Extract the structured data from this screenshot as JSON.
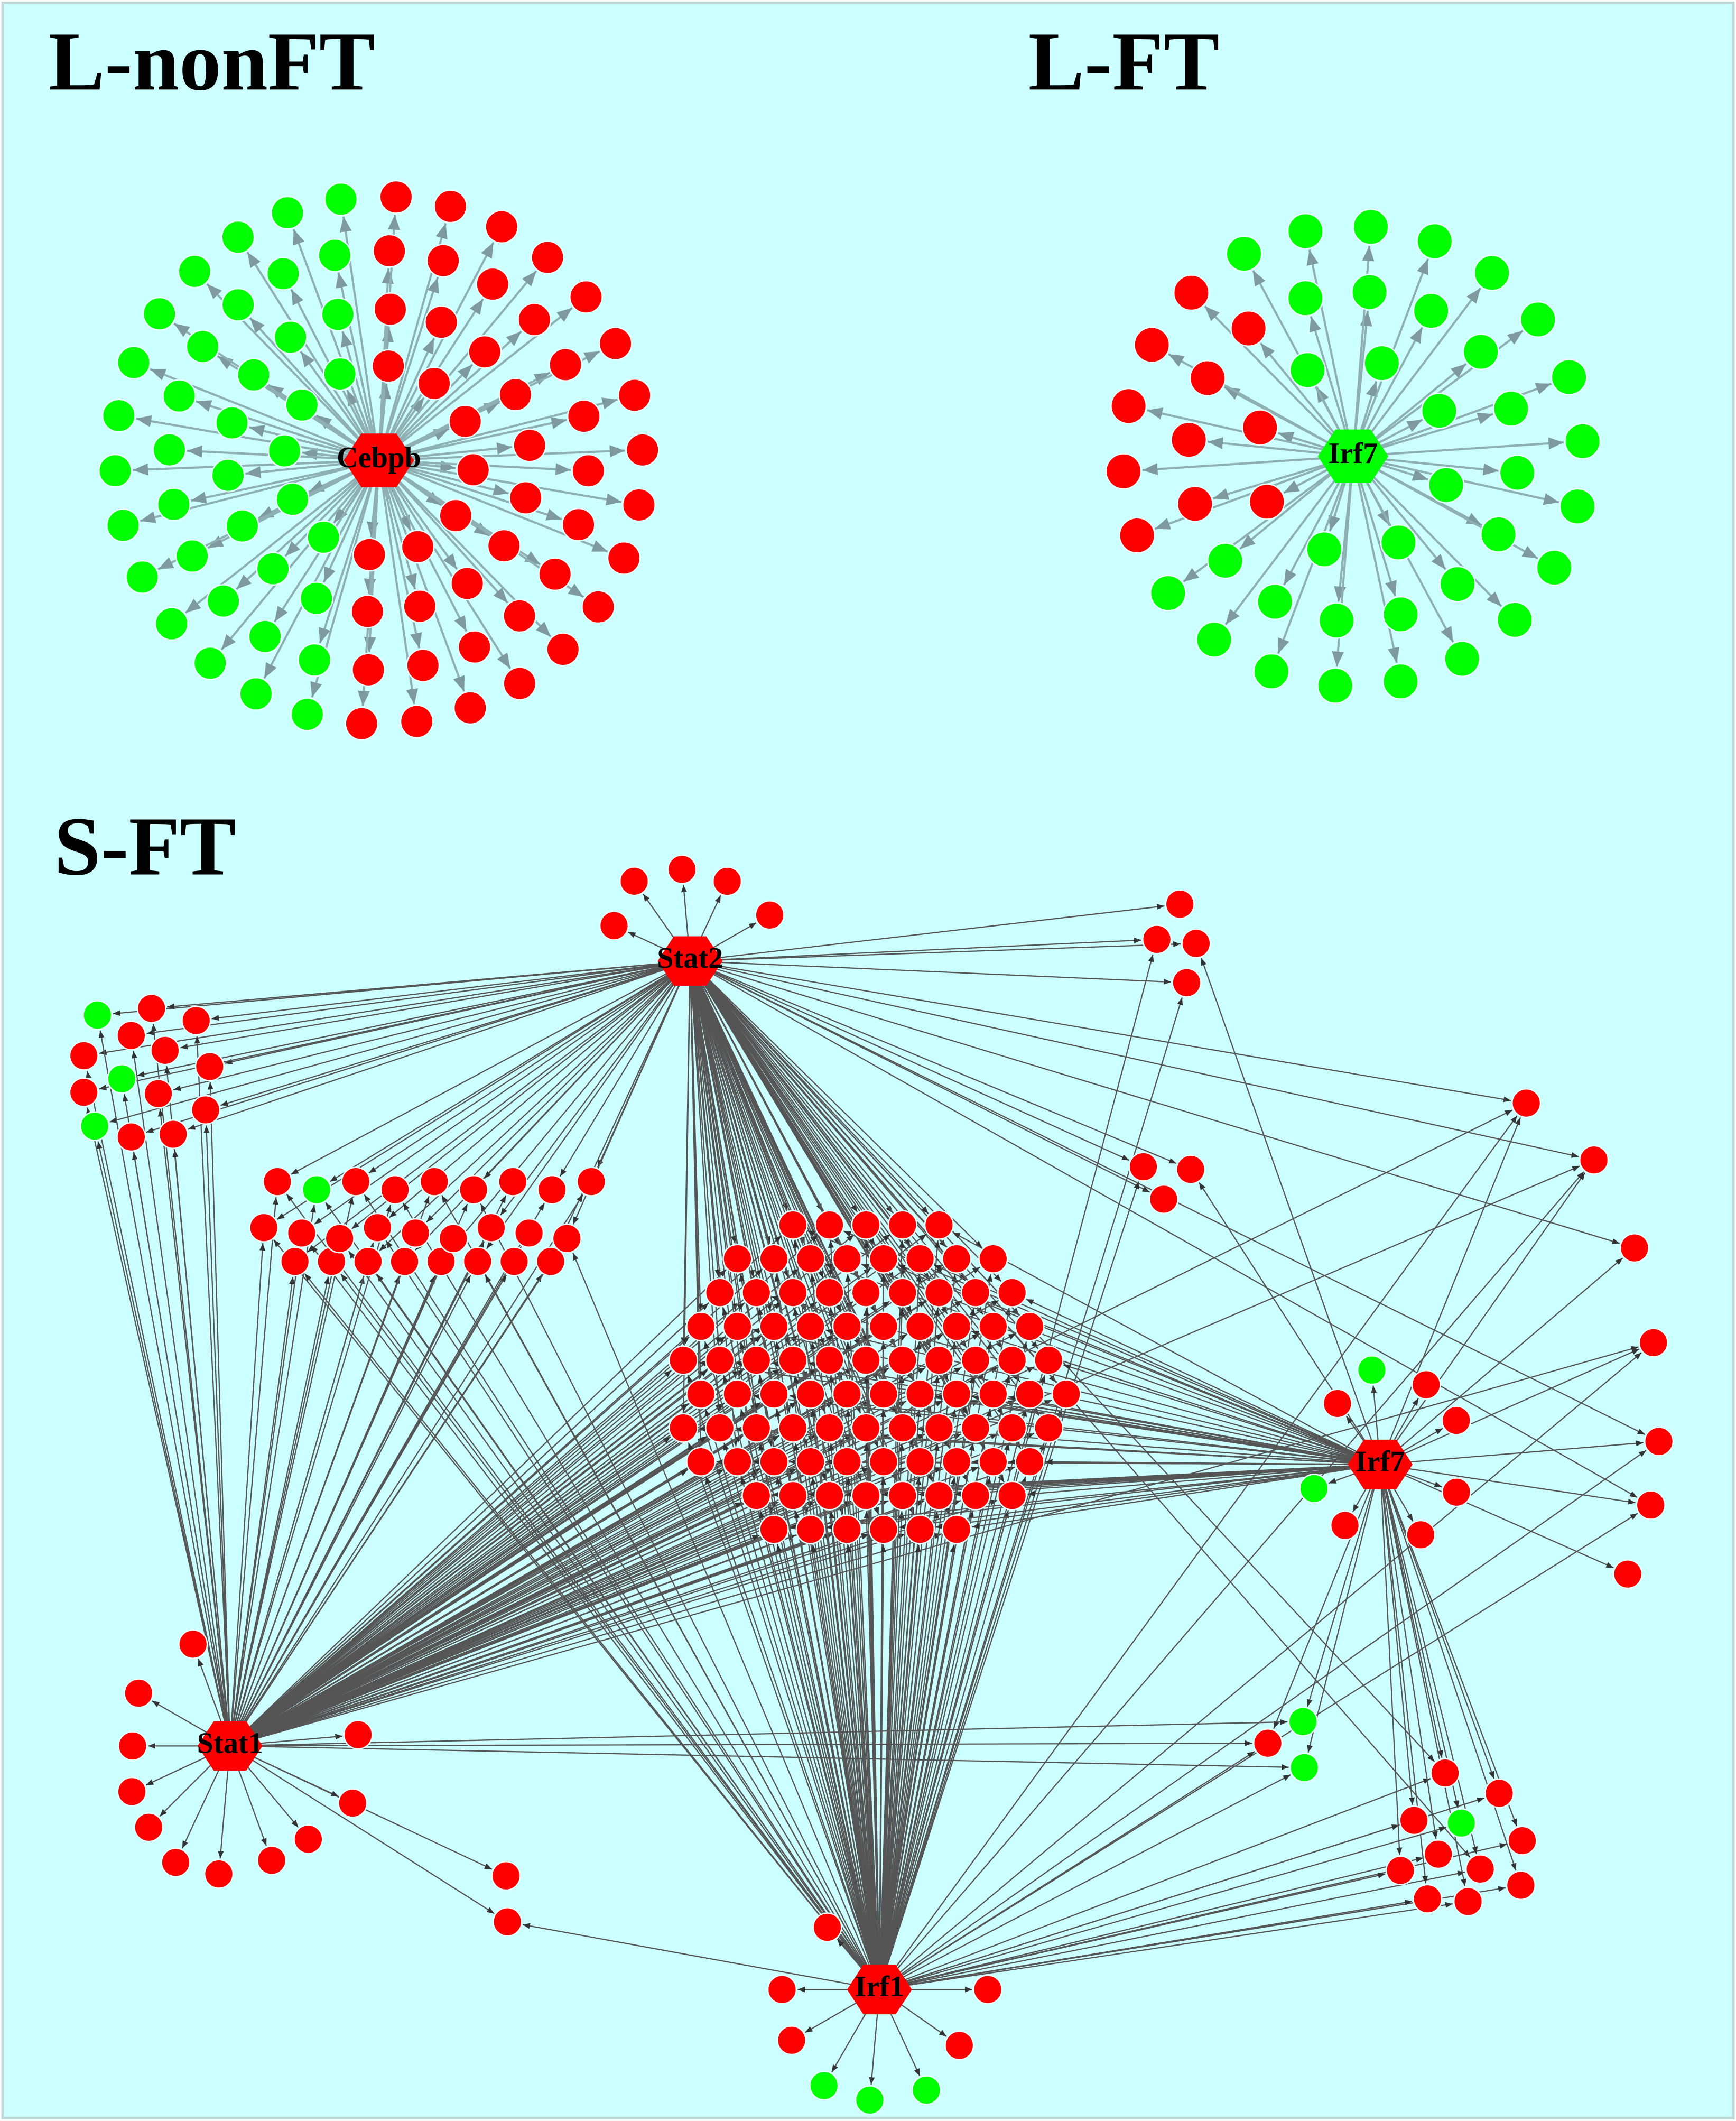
{
  "panels": [
    {
      "title": "L-nonFT",
      "hub": "Cebpb"
    },
    {
      "title": "L-FT",
      "hub": "Irf7"
    },
    {
      "title": "S-FT",
      "hubs": [
        "Stat2",
        "Stat1",
        "Irf1",
        "Irf7"
      ]
    }
  ]
}
